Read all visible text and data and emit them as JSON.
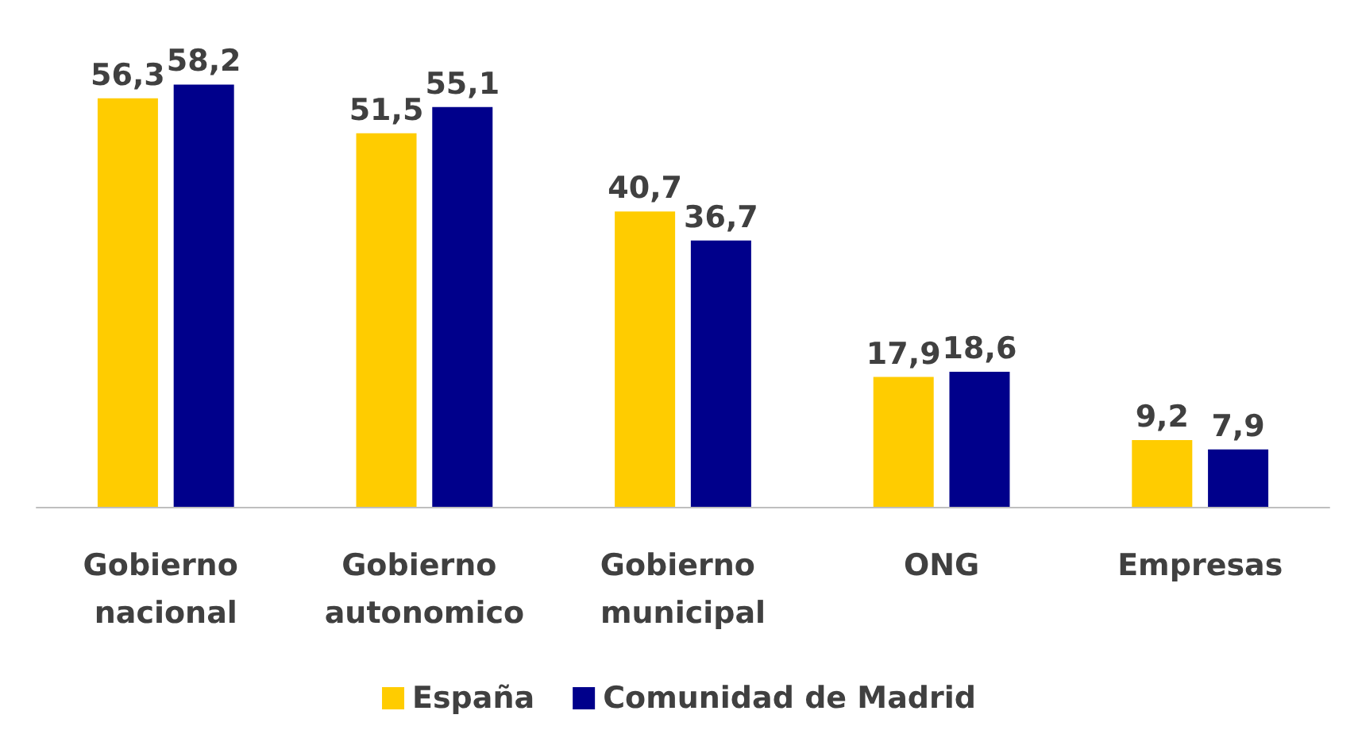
{
  "chart_data": {
    "type": "bar",
    "categories": [
      "Gobierno nacional",
      "Gobierno autonomico",
      "Gobierno municipal",
      "ONG",
      "Empresas"
    ],
    "series": [
      {
        "name": "España",
        "color": "#ffcc00",
        "values": [
          56.3,
          51.5,
          40.7,
          17.9,
          9.2
        ],
        "value_labels": [
          "56,3",
          "51,5",
          "40,7",
          "17,9",
          "9,2"
        ]
      },
      {
        "name": "Comunidad de Madrid",
        "color": "#00008b",
        "values": [
          58.2,
          55.1,
          36.7,
          18.6,
          7.9
        ],
        "value_labels": [
          "58,2",
          "55,1",
          "36,7",
          "18,6",
          "7,9"
        ]
      }
    ],
    "legend": "bottom"
  }
}
